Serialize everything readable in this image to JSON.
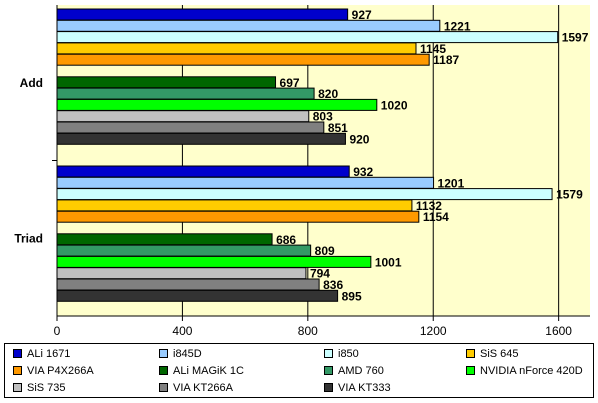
{
  "chart_data": {
    "type": "bar",
    "orientation": "horizontal",
    "categories": [
      "Add",
      "Triad"
    ],
    "series": [
      {
        "name": "ALi 1671",
        "color": "#0000cc",
        "values": [
          927,
          932
        ]
      },
      {
        "name": "i845D",
        "color": "#99ccff",
        "values": [
          1221,
          1201
        ]
      },
      {
        "name": "i850",
        "color": "#ccffff",
        "values": [
          1597,
          1579
        ]
      },
      {
        "name": "SiS 645",
        "color": "#ffcc00",
        "values": [
          1145,
          1132
        ]
      },
      {
        "name": "VIA P4X266A",
        "color": "#ff9900",
        "values": [
          1187,
          1154
        ]
      },
      {
        "name": "ALi MAGiK 1C",
        "color": "#006600",
        "values": [
          697,
          686
        ]
      },
      {
        "name": "AMD 760",
        "color": "#339966",
        "values": [
          820,
          809
        ]
      },
      {
        "name": "NVIDIA nForce 420D",
        "color": "#00ff00",
        "values": [
          1020,
          1001
        ]
      },
      {
        "name": "SiS 735",
        "color": "#c0c0c0",
        "values": [
          803,
          794
        ]
      },
      {
        "name": "VIA KT266A",
        "color": "#808080",
        "values": [
          851,
          836
        ]
      },
      {
        "name": "VIA KT333",
        "color": "#333333",
        "values": [
          920,
          895
        ]
      }
    ],
    "xlim": [
      0,
      1700
    ],
    "x_ticks": [
      0,
      400,
      800,
      1200,
      1600
    ],
    "title": "",
    "xlabel": "",
    "ylabel": "",
    "grid": true,
    "legend_position": "bottom",
    "plot_background": "#ffffcc"
  }
}
